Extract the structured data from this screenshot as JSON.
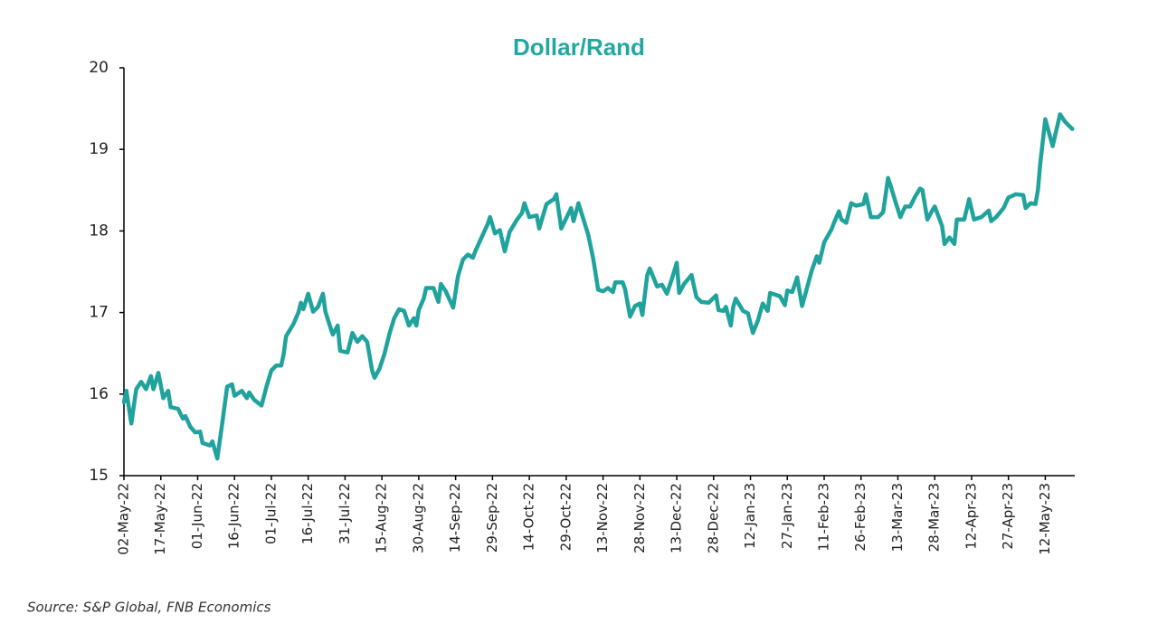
{
  "chart_data": {
    "type": "line",
    "title": "Dollar/Rand",
    "source": "Source: S&P Global, FNB Economics",
    "color": "#1fa39c",
    "x": [
      "02-May-22",
      "03-May-22",
      "05-May-22",
      "07-May-22",
      "09-May-22",
      "11-May-22",
      "13-May-22",
      "14-May-22",
      "16-May-22",
      "18-May-22",
      "20-May-22",
      "21-May-22",
      "24-May-22",
      "26-May-22",
      "27-May-22",
      "29-May-22",
      "31-May-22",
      "02-Jun-22",
      "03-Jun-22",
      "06-Jun-22",
      "07-Jun-22",
      "09-Jun-22",
      "11-Jun-22",
      "13-Jun-22",
      "15-Jun-22",
      "16-Jun-22",
      "19-Jun-22",
      "21-Jun-22",
      "22-Jun-22",
      "24-Jun-22",
      "27-Jun-22",
      "29-Jun-22",
      "01-Jul-22",
      "03-Jul-22",
      "05-Jul-22",
      "06-Jul-22",
      "07-Jul-22",
      "10-Jul-22",
      "12-Jul-22",
      "13-Jul-22",
      "14-Jul-22",
      "16-Jul-22",
      "18-Jul-22",
      "20-Jul-22",
      "22-Jul-22",
      "23-Jul-22",
      "25-Jul-22",
      "26-Jul-22",
      "28-Jul-22",
      "29-Jul-22",
      "01-Aug-22",
      "03-Aug-22",
      "05-Aug-22",
      "07-Aug-22",
      "09-Aug-22",
      "11-Aug-22",
      "12-Aug-22",
      "14-Aug-22",
      "16-Aug-22",
      "18-Aug-22",
      "20-Aug-22",
      "22-Aug-22",
      "24-Aug-22",
      "26-Aug-22",
      "28-Aug-22",
      "29-Aug-22",
      "30-Aug-22",
      "01-Sep-22",
      "02-Sep-22",
      "05-Sep-22",
      "07-Sep-22",
      "08-Sep-22",
      "10-Sep-22",
      "13-Sep-22",
      "15-Sep-22",
      "17-Sep-22",
      "19-Sep-22",
      "21-Sep-22",
      "22-Sep-22",
      "25-Sep-22",
      "27-Sep-22",
      "28-Sep-22",
      "30-Sep-22",
      "02-Oct-22",
      "04-Oct-22",
      "06-Oct-22",
      "09-Oct-22",
      "11-Oct-22",
      "12-Oct-22",
      "14-Oct-22",
      "17-Oct-22",
      "18-Oct-22",
      "21-Oct-22",
      "23-Oct-22",
      "24-Oct-22",
      "25-Oct-22",
      "27-Oct-22",
      "31-Oct-22",
      "01-Nov-22",
      "03-Nov-22",
      "07-Nov-22",
      "09-Nov-22",
      "11-Nov-22",
      "13-Nov-22",
      "15-Nov-22",
      "17-Nov-22",
      "18-Nov-22",
      "21-Nov-22",
      "22-Nov-22",
      "24-Nov-22",
      "26-Nov-22",
      "28-Nov-22",
      "29-Nov-22",
      "01-Dec-22",
      "02-Dec-22",
      "05-Dec-22",
      "07-Dec-22",
      "09-Dec-22",
      "11-Dec-22",
      "13-Dec-22",
      "14-Dec-22",
      "16-Dec-22",
      "19-Dec-22",
      "21-Dec-22",
      "23-Dec-22",
      "26-Dec-22",
      "29-Dec-22",
      "30-Dec-22",
      "01-Jan-23",
      "02-Jan-23",
      "04-Jan-23",
      "05-Jan-23",
      "06-Jan-23",
      "09-Jan-23",
      "11-Jan-23",
      "13-Jan-23",
      "15-Jan-23",
      "17-Jan-23",
      "19-Jan-23",
      "20-Jan-23",
      "24-Jan-23",
      "26-Jan-23",
      "27-Jan-23",
      "29-Jan-23",
      "31-Jan-23",
      "02-Feb-23",
      "04-Feb-23",
      "06-Feb-23",
      "08-Feb-23",
      "09-Feb-23",
      "11-Feb-23",
      "14-Feb-23",
      "15-Feb-23",
      "17-Feb-23",
      "18-Feb-23",
      "20-Feb-23",
      "22-Feb-23",
      "24-Feb-23",
      "27-Feb-23",
      "28-Feb-23",
      "02-Mar-23",
      "05-Mar-23",
      "07-Mar-23",
      "09-Mar-23",
      "10-Mar-23",
      "12-Mar-23",
      "14-Mar-23",
      "16-Mar-23",
      "18-Mar-23",
      "20-Mar-23",
      "22-Mar-23",
      "23-Mar-23",
      "25-Mar-23",
      "27-Mar-23",
      "28-Mar-23",
      "31-Mar-23",
      "01-Apr-23",
      "03-Apr-23",
      "05-Apr-23",
      "06-Apr-23",
      "09-Apr-23",
      "11-Apr-23",
      "13-Apr-23",
      "16-Apr-23",
      "19-Apr-23",
      "20-Apr-23",
      "22-Apr-23",
      "25-Apr-23",
      "27-Apr-23",
      "30-Apr-23",
      "03-May-23",
      "04-May-23",
      "06-May-23",
      "08-May-23",
      "09-May-23",
      "10-May-23",
      "12-May-23",
      "15-May-23",
      "16-May-23",
      "18-May-23",
      "20-May-23",
      "22-May-23",
      "23-May-23"
    ],
    "values": [
      15.9,
      16.04,
      15.64,
      16.06,
      16.15,
      16.06,
      16.22,
      16.06,
      16.26,
      15.95,
      16.04,
      15.84,
      15.82,
      15.7,
      15.73,
      15.6,
      15.53,
      15.54,
      15.4,
      15.37,
      15.42,
      15.21,
      15.64,
      16.09,
      16.12,
      15.98,
      16.04,
      15.95,
      16.02,
      15.93,
      15.86,
      16.09,
      16.29,
      16.35,
      16.35,
      16.49,
      16.71,
      16.86,
      17.0,
      17.12,
      17.04,
      17.23,
      17.01,
      17.07,
      17.23,
      17.01,
      16.82,
      16.73,
      16.84,
      16.53,
      16.51,
      16.75,
      16.64,
      16.71,
      16.64,
      16.29,
      16.2,
      16.31,
      16.49,
      16.73,
      16.93,
      17.04,
      17.02,
      16.84,
      16.93,
      16.84,
      17.03,
      17.17,
      17.3,
      17.3,
      17.13,
      17.35,
      17.26,
      17.06,
      17.45,
      17.65,
      17.71,
      17.67,
      17.75,
      17.95,
      18.08,
      18.17,
      17.97,
      18.01,
      17.75,
      17.99,
      18.14,
      18.22,
      18.34,
      18.17,
      18.19,
      18.03,
      18.33,
      18.37,
      18.39,
      18.45,
      18.03,
      18.28,
      18.12,
      18.34,
      17.95,
      17.66,
      17.28,
      17.26,
      17.3,
      17.25,
      17.37,
      17.37,
      17.28,
      16.95,
      17.08,
      17.11,
      16.97,
      17.46,
      17.54,
      17.32,
      17.34,
      17.23,
      17.41,
      17.61,
      17.24,
      17.35,
      17.46,
      17.19,
      17.13,
      17.12,
      17.21,
      17.03,
      17.02,
      17.07,
      16.84,
      17.07,
      17.17,
      17.02,
      16.99,
      16.75,
      16.9,
      17.11,
      17.02,
      17.24,
      17.2,
      17.09,
      17.27,
      17.25,
      17.43,
      17.08,
      17.3,
      17.52,
      17.69,
      17.61,
      17.86,
      18.02,
      18.1,
      18.24,
      18.14,
      18.1,
      18.34,
      18.31,
      18.33,
      18.45,
      18.17,
      18.17,
      18.23,
      18.65,
      18.56,
      18.36,
      18.17,
      18.3,
      18.3,
      18.42,
      18.52,
      18.5,
      18.14,
      18.25,
      18.3,
      18.06,
      17.84,
      17.92,
      17.84,
      18.14,
      18.14,
      18.39,
      18.14,
      18.17,
      18.25,
      18.12,
      18.17,
      18.28,
      18.41,
      18.45,
      18.44,
      18.28,
      18.34,
      18.33,
      18.5,
      18.84,
      19.37,
      19.04,
      19.17,
      19.43,
      19.34,
      19.28,
      19.25
    ],
    "xlim": [
      "02-May-22",
      "24-May-23"
    ],
    "xticks": [
      "02-May-22",
      "17-May-22",
      "01-Jun-22",
      "16-Jun-22",
      "01-Jul-22",
      "16-Jul-22",
      "31-Jul-22",
      "15-Aug-22",
      "30-Aug-22",
      "14-Sep-22",
      "29-Sep-22",
      "14-Oct-22",
      "29-Oct-22",
      "13-Nov-22",
      "28-Nov-22",
      "13-Dec-22",
      "28-Dec-22",
      "12-Jan-23",
      "27-Jan-23",
      "11-Feb-23",
      "26-Feb-23",
      "13-Mar-23",
      "28-Mar-23",
      "12-Apr-23",
      "27-Apr-23",
      "12-May-23"
    ],
    "ylim": [
      15,
      20
    ],
    "yticks": [
      15,
      16,
      17,
      18,
      19,
      20
    ],
    "grid": false
  }
}
